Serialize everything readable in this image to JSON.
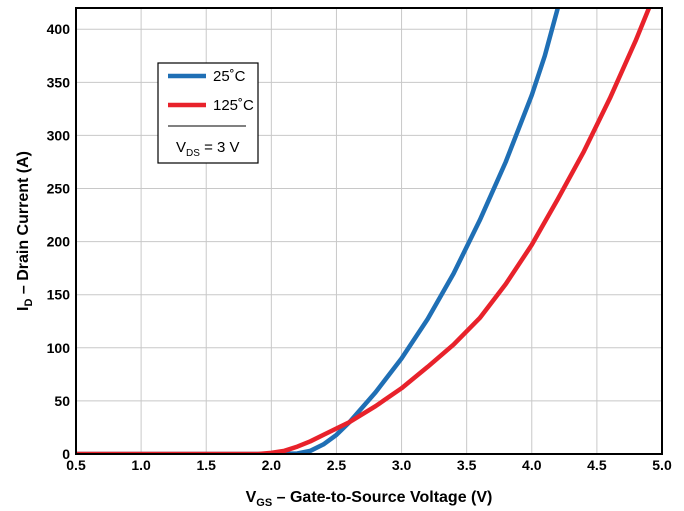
{
  "chart_data": {
    "type": "line",
    "xlabel": {
      "main": "V",
      "sub": "GS",
      "rest": " – Gate-to-Source Voltage (V)"
    },
    "ylabel": {
      "main": "I",
      "sub": "D",
      "rest": " – Drain Current (A)"
    },
    "xlim": [
      0.5,
      5.0
    ],
    "ylim": [
      0,
      420
    ],
    "xticks": [
      "0.5",
      "1.0",
      "1.5",
      "2.0",
      "2.5",
      "3.0",
      "3.5",
      "4.0",
      "4.5",
      "5.0"
    ],
    "yticks": [
      "0",
      "50",
      "100",
      "150",
      "200",
      "250",
      "300",
      "350",
      "400"
    ],
    "grid": true,
    "legend_position": "top-left",
    "legend_note": {
      "main": "V",
      "sub": "DS",
      "rest": " = 3 V"
    },
    "series": [
      {
        "name": "25˚C",
        "color": "#1f6fb5",
        "x": [
          0.5,
          2.0,
          2.2,
          2.3,
          2.4,
          2.5,
          2.6,
          2.8,
          3.0,
          3.2,
          3.4,
          3.6,
          3.8,
          4.0,
          4.1,
          4.2
        ],
        "y": [
          0,
          0,
          0.5,
          3,
          9,
          18,
          30,
          58,
          90,
          127,
          170,
          220,
          275,
          338,
          375,
          420
        ]
      },
      {
        "name": "125˚C",
        "color": "#e8222b",
        "x": [
          0.5,
          1.9,
          2.0,
          2.1,
          2.2,
          2.3,
          2.4,
          2.5,
          2.6,
          2.8,
          3.0,
          3.2,
          3.4,
          3.6,
          3.8,
          4.0,
          4.2,
          4.4,
          4.6,
          4.8,
          4.9
        ],
        "y": [
          0,
          0,
          1,
          3,
          7,
          12,
          18,
          24,
          30,
          45,
          62,
          82,
          103,
          128,
          160,
          197,
          240,
          285,
          335,
          390,
          420
        ]
      }
    ]
  }
}
